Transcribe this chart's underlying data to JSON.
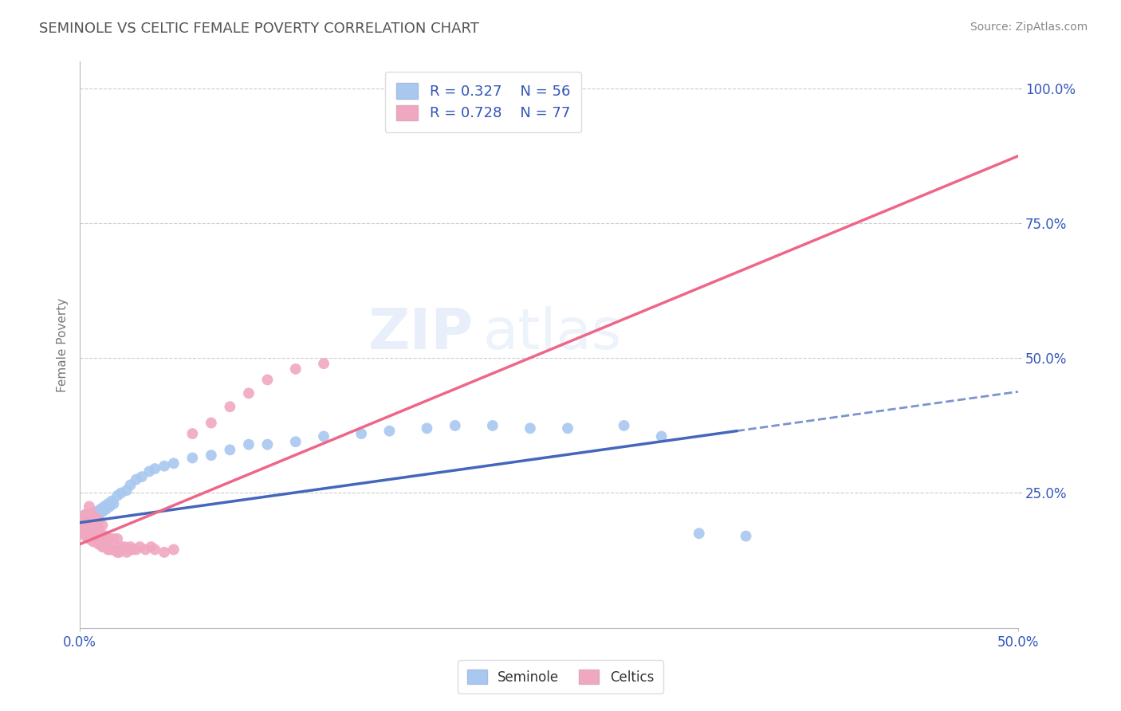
{
  "title": "SEMINOLE VS CELTIC FEMALE POVERTY CORRELATION CHART",
  "source_text": "Source: ZipAtlas.com",
  "ylabel": "Female Poverty",
  "xlim": [
    0.0,
    0.5
  ],
  "ylim": [
    0.0,
    1.05
  ],
  "grid_color": "#cccccc",
  "background_color": "#ffffff",
  "seminole_color": "#a8c8f0",
  "celtics_color": "#f0a8c0",
  "seminole_line_color": "#4466bb",
  "celtics_line_color": "#ee6688",
  "R_seminole": 0.327,
  "N_seminole": 56,
  "R_celtics": 0.728,
  "N_celtics": 77,
  "legend_text_color": "#3355bb",
  "title_color": "#555555",
  "seminole_line_x0": 0.0,
  "seminole_line_y0": 0.195,
  "seminole_line_x1": 0.35,
  "seminole_line_y1": 0.365,
  "celtics_line_x0": 0.0,
  "celtics_line_y0": 0.155,
  "celtics_line_x1": 0.5,
  "celtics_line_y1": 0.875,
  "seminole_points_x": [
    0.001,
    0.002,
    0.002,
    0.003,
    0.003,
    0.003,
    0.004,
    0.004,
    0.005,
    0.005,
    0.006,
    0.006,
    0.007,
    0.007,
    0.008,
    0.008,
    0.009,
    0.009,
    0.01,
    0.01,
    0.011,
    0.012,
    0.013,
    0.014,
    0.015,
    0.016,
    0.017,
    0.018,
    0.02,
    0.022,
    0.025,
    0.027,
    0.03,
    0.033,
    0.037,
    0.04,
    0.045,
    0.05,
    0.06,
    0.07,
    0.08,
    0.09,
    0.1,
    0.115,
    0.13,
    0.15,
    0.165,
    0.185,
    0.2,
    0.22,
    0.24,
    0.26,
    0.29,
    0.31,
    0.33,
    0.355
  ],
  "seminole_points_y": [
    0.195,
    0.2,
    0.205,
    0.19,
    0.2,
    0.21,
    0.195,
    0.205,
    0.19,
    0.205,
    0.2,
    0.21,
    0.195,
    0.21,
    0.2,
    0.215,
    0.195,
    0.21,
    0.2,
    0.215,
    0.22,
    0.215,
    0.225,
    0.22,
    0.23,
    0.225,
    0.235,
    0.23,
    0.245,
    0.25,
    0.255,
    0.265,
    0.275,
    0.28,
    0.29,
    0.295,
    0.3,
    0.305,
    0.315,
    0.32,
    0.33,
    0.34,
    0.34,
    0.345,
    0.355,
    0.36,
    0.365,
    0.37,
    0.375,
    0.375,
    0.37,
    0.37,
    0.375,
    0.355,
    0.175,
    0.17
  ],
  "celtics_points_x": [
    0.001,
    0.001,
    0.002,
    0.002,
    0.002,
    0.003,
    0.003,
    0.003,
    0.003,
    0.004,
    0.004,
    0.004,
    0.004,
    0.005,
    0.005,
    0.005,
    0.005,
    0.005,
    0.006,
    0.006,
    0.006,
    0.006,
    0.007,
    0.007,
    0.007,
    0.007,
    0.008,
    0.008,
    0.008,
    0.009,
    0.009,
    0.009,
    0.01,
    0.01,
    0.01,
    0.01,
    0.011,
    0.011,
    0.012,
    0.012,
    0.012,
    0.013,
    0.013,
    0.014,
    0.014,
    0.015,
    0.015,
    0.016,
    0.016,
    0.017,
    0.018,
    0.018,
    0.019,
    0.02,
    0.02,
    0.021,
    0.022,
    0.023,
    0.024,
    0.025,
    0.026,
    0.027,
    0.028,
    0.03,
    0.032,
    0.035,
    0.038,
    0.04,
    0.045,
    0.05,
    0.06,
    0.07,
    0.08,
    0.09,
    0.1,
    0.115,
    0.13
  ],
  "celtics_points_y": [
    0.18,
    0.195,
    0.175,
    0.19,
    0.2,
    0.17,
    0.185,
    0.195,
    0.21,
    0.17,
    0.185,
    0.195,
    0.21,
    0.165,
    0.18,
    0.195,
    0.21,
    0.225,
    0.165,
    0.18,
    0.195,
    0.21,
    0.16,
    0.175,
    0.195,
    0.21,
    0.16,
    0.175,
    0.195,
    0.16,
    0.175,
    0.195,
    0.155,
    0.17,
    0.185,
    0.2,
    0.155,
    0.175,
    0.15,
    0.17,
    0.19,
    0.15,
    0.17,
    0.15,
    0.17,
    0.145,
    0.165,
    0.145,
    0.165,
    0.145,
    0.145,
    0.165,
    0.145,
    0.14,
    0.165,
    0.14,
    0.15,
    0.145,
    0.15,
    0.14,
    0.145,
    0.15,
    0.145,
    0.145,
    0.15,
    0.145,
    0.15,
    0.145,
    0.14,
    0.145,
    0.36,
    0.38,
    0.41,
    0.435,
    0.46,
    0.48,
    0.49
  ]
}
